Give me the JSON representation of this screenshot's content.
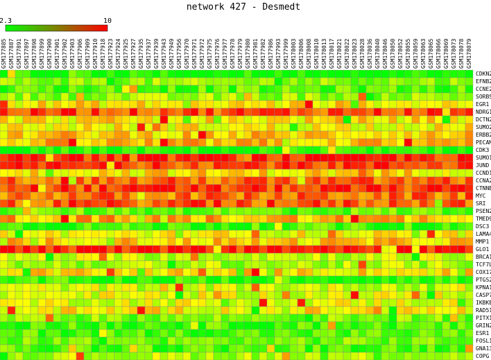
{
  "chart_data": {
    "type": "heatmap",
    "title": "network 427 - Desmedt",
    "colorbar": {
      "min_label": "2.3",
      "max_label": "10",
      "min": 2.3,
      "max": 10,
      "low_color": "#00ff00",
      "high_color": "#ff0000"
    },
    "columns": [
      "GSM177885",
      "GSM177887",
      "GSM177891",
      "GSM177897",
      "GSM177898",
      "GSM177899",
      "GSM177900",
      "GSM177901",
      "GSM177902",
      "GSM177903",
      "GSM177906",
      "GSM177909",
      "GSM177910",
      "GSM177918",
      "GSM177923",
      "GSM177924",
      "GSM177925",
      "GSM177927",
      "GSM177935",
      "GSM177937",
      "GSM177939",
      "GSM177943",
      "GSM177949",
      "GSM177956",
      "GSM177970",
      "GSM177971",
      "GSM177972",
      "GSM177975",
      "GSM177976",
      "GSM177977",
      "GSM177978",
      "GSM177979",
      "GSM177980",
      "GSM177981",
      "GSM177982",
      "GSM177986",
      "GSM177993",
      "GSM177999",
      "GSM178003",
      "GSM178006",
      "GSM178008",
      "GSM178010",
      "GSM178013",
      "GSM178017",
      "GSM178021",
      "GSM178022",
      "GSM178023",
      "GSM178028",
      "GSM178036",
      "GSM178040",
      "GSM178046",
      "GSM178050",
      "GSM178052",
      "GSM178055",
      "GSM178059",
      "GSM178063",
      "GSM178065",
      "GSM178066",
      "GSM178069",
      "GSM178073",
      "GSM178078",
      "GSM178079"
    ],
    "rows": [
      "CDKN2B",
      "EFNB2",
      "CCNE2",
      "SORBS1",
      "EGR1",
      "NDRG1",
      "DCTN2",
      "SUMO2",
      "ERBB2",
      "PECAM1",
      "CDK3",
      "SUMO1",
      "JUND",
      "CCND1",
      "CCNA2",
      "CTNNB1",
      "MYC",
      "SRI",
      "PSEN2",
      "TMED9",
      "DSC3",
      "LAMA4",
      "MMP1",
      "GLO1",
      "BRCA1",
      "TCF7L2",
      "COX17",
      "PTGS2",
      "KPNA1",
      "CASP7",
      "IKBKE",
      "RAD51",
      "PITX1",
      "GRIN2D",
      "ESR1",
      "FOSL1",
      "GNA13",
      "COPG"
    ],
    "row_levels": [
      2.4,
      4.4,
      3.6,
      4.6,
      6.4,
      8.9,
      6.4,
      6.2,
      6.9,
      7.0,
      2.6,
      9.4,
      9.1,
      6.6,
      8.4,
      9.0,
      8.3,
      8.6,
      3.9,
      7.3,
      3.3,
      6.0,
      6.8,
      9.6,
      5.3,
      4.8,
      6.5,
      3.0,
      5.4,
      5.7,
      5.8,
      6.2,
      4.2,
      3.4,
      3.5,
      4.0,
      3.6,
      5.0
    ],
    "values_note": ""
  }
}
